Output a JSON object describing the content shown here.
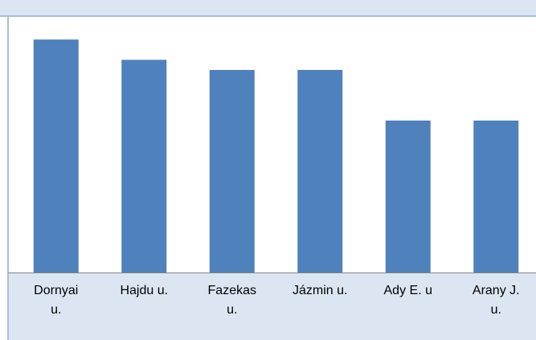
{
  "chart_data": {
    "type": "bar",
    "categories": [
      "Dornyai u.",
      "Hajdu u.",
      "Fazekas u.",
      "Jázmin u.",
      "Ady E. u",
      "Arany J. u."
    ],
    "values": [
      23,
      21,
      20,
      20,
      15,
      15
    ],
    "color": "#4f81bd",
    "ylim": [
      0,
      25
    ]
  }
}
